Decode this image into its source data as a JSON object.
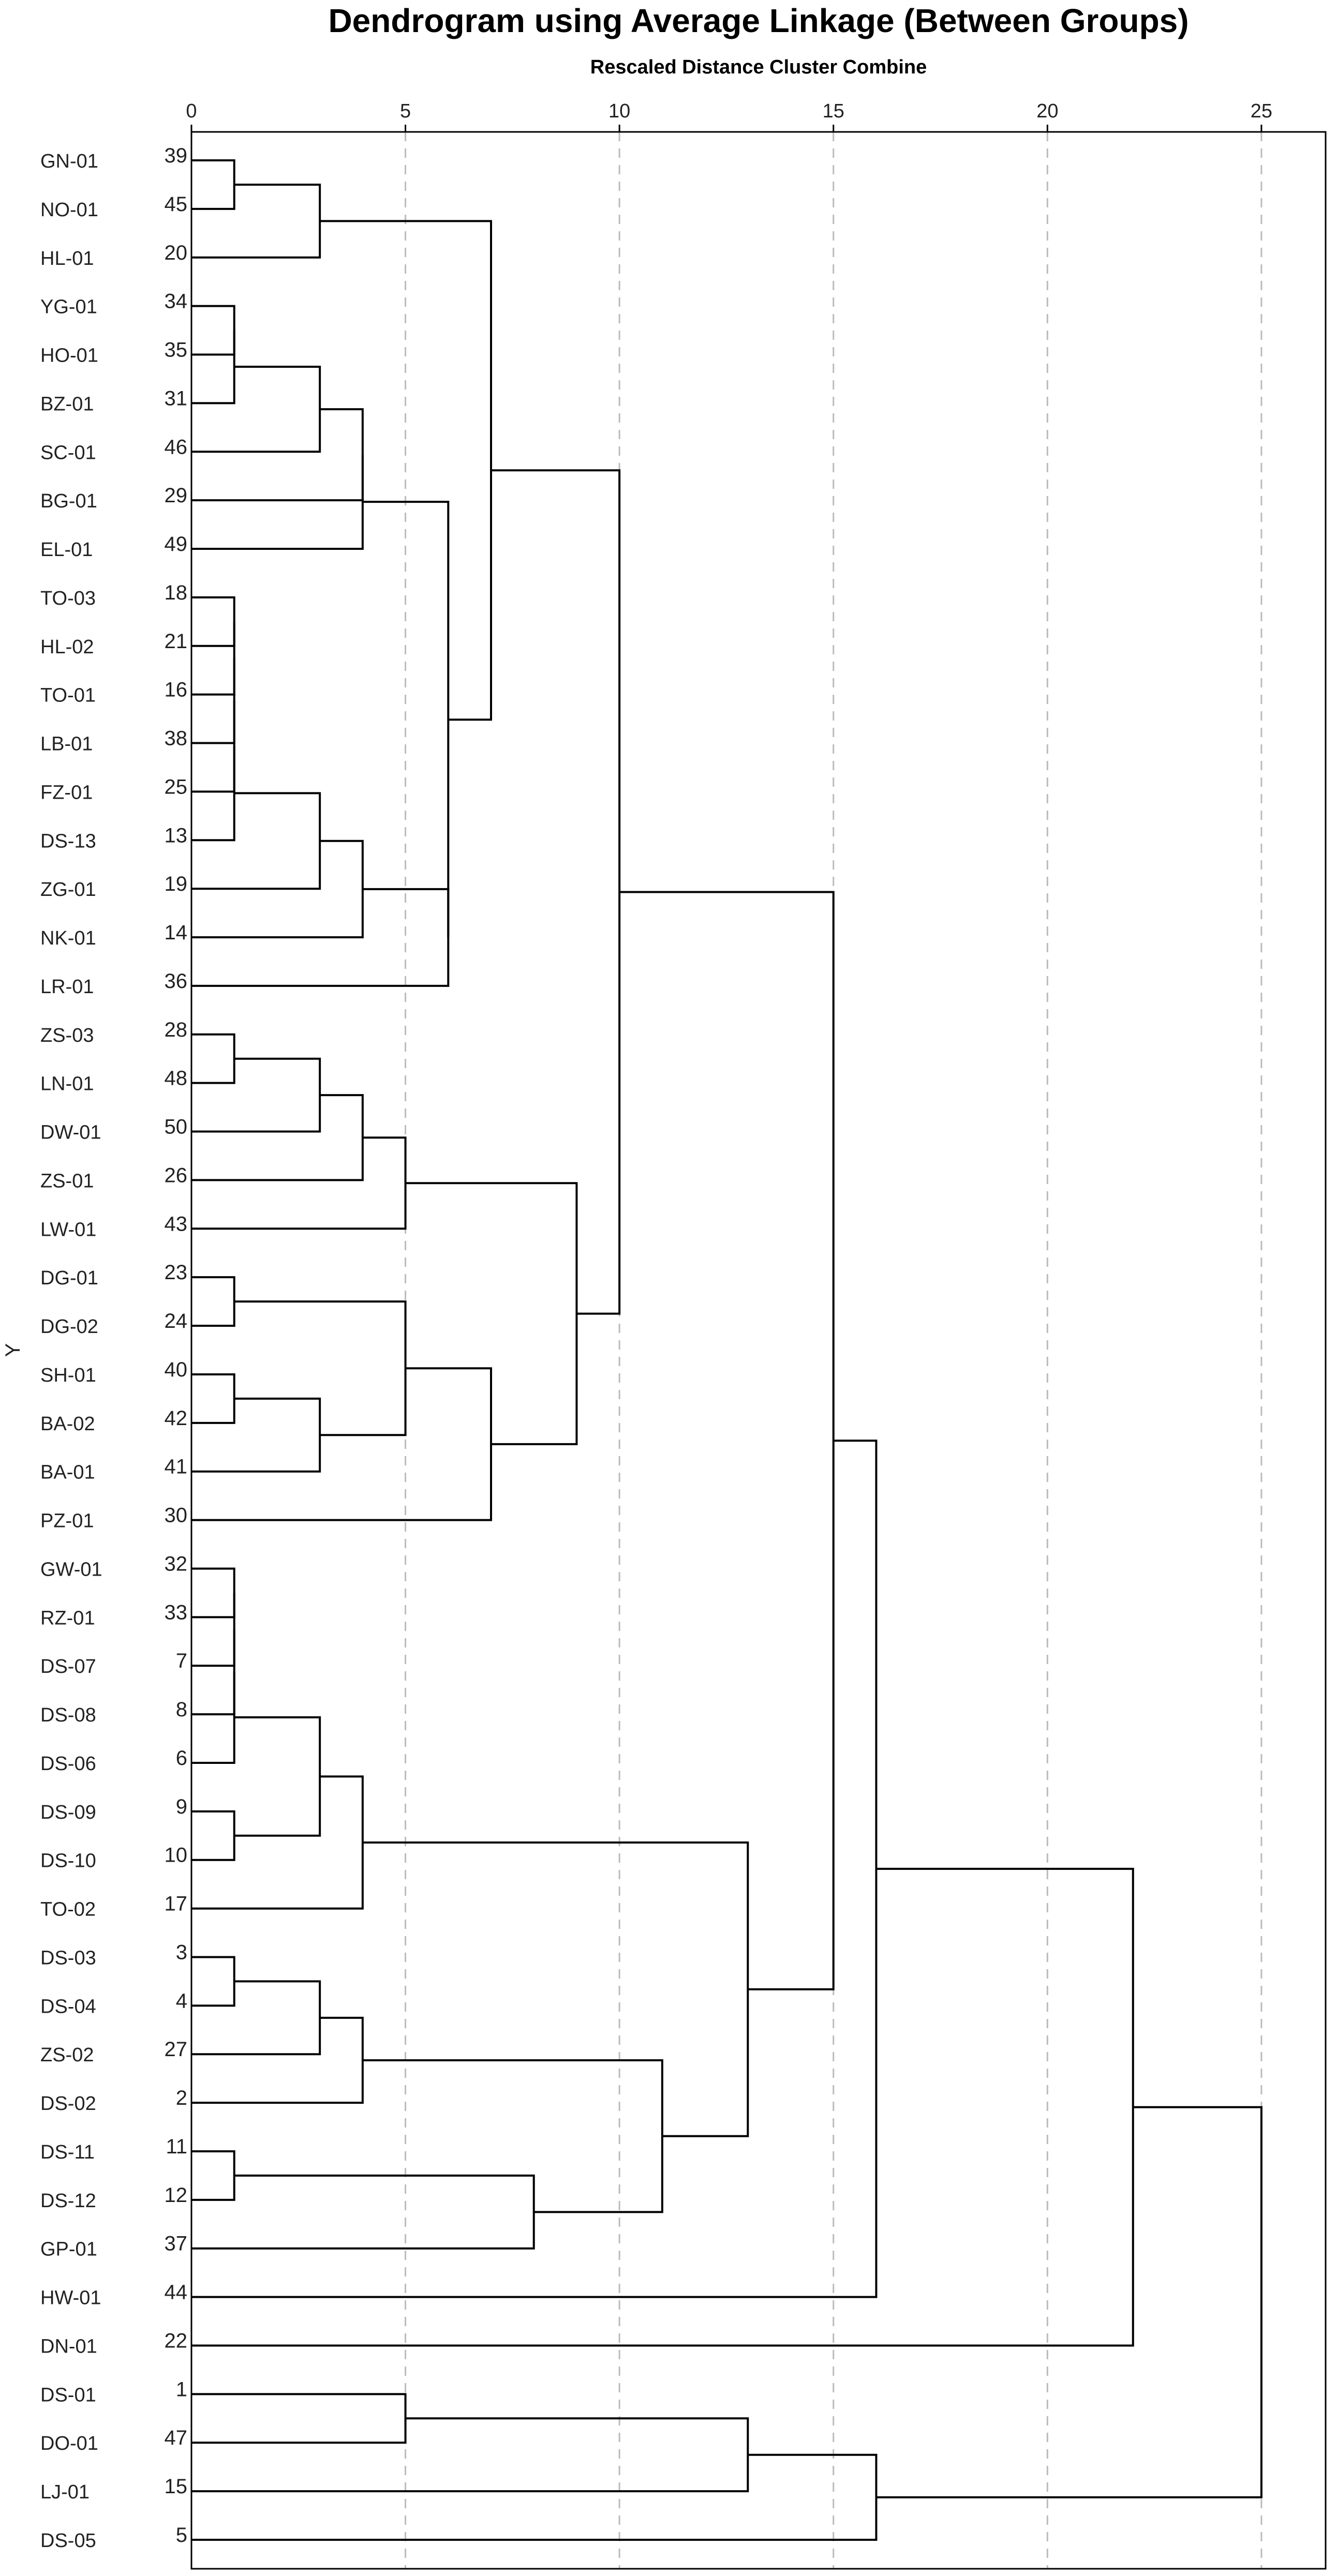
{
  "chart_data": {
    "type": "dendrogram",
    "title": "Dendrogram using Average Linkage (Between Groups)",
    "subtitle": "Rescaled Distance Cluster Combine",
    "ylabel": "Y",
    "xlim": [
      0,
      26.5
    ],
    "xticks": [
      "0",
      "5",
      "10",
      "15",
      "20",
      "25"
    ],
    "grid": true,
    "colors": {
      "line": "#000000",
      "grid": "#bbbbbb",
      "frame": "#000000"
    },
    "leaves": [
      {
        "label": "GN-01",
        "id": "39"
      },
      {
        "label": "NO-01",
        "id": "45"
      },
      {
        "label": "HL-01",
        "id": "20"
      },
      {
        "label": "YG-01",
        "id": "34"
      },
      {
        "label": "HO-01",
        "id": "35"
      },
      {
        "label": "BZ-01",
        "id": "31"
      },
      {
        "label": "SC-01",
        "id": "46"
      },
      {
        "label": "BG-01",
        "id": "29"
      },
      {
        "label": "EL-01",
        "id": "49"
      },
      {
        "label": "TO-03",
        "id": "18"
      },
      {
        "label": "HL-02",
        "id": "21"
      },
      {
        "label": "TO-01",
        "id": "16"
      },
      {
        "label": "LB-01",
        "id": "38"
      },
      {
        "label": "FZ-01",
        "id": "25"
      },
      {
        "label": "DS-13",
        "id": "13"
      },
      {
        "label": "ZG-01",
        "id": "19"
      },
      {
        "label": "NK-01",
        "id": "14"
      },
      {
        "label": "LR-01",
        "id": "36"
      },
      {
        "label": "ZS-03",
        "id": "28"
      },
      {
        "label": "LN-01",
        "id": "48"
      },
      {
        "label": "DW-01",
        "id": "50"
      },
      {
        "label": "ZS-01",
        "id": "26"
      },
      {
        "label": "LW-01",
        "id": "43"
      },
      {
        "label": "DG-01",
        "id": "23"
      },
      {
        "label": "DG-02",
        "id": "24"
      },
      {
        "label": "SH-01",
        "id": "40"
      },
      {
        "label": "BA-02",
        "id": "42"
      },
      {
        "label": "BA-01",
        "id": "41"
      },
      {
        "label": "PZ-01",
        "id": "30"
      },
      {
        "label": "GW-01",
        "id": "32"
      },
      {
        "label": "RZ-01",
        "id": "33"
      },
      {
        "label": "DS-07",
        "id": "7"
      },
      {
        "label": "DS-08",
        "id": "8"
      },
      {
        "label": "DS-06",
        "id": "6"
      },
      {
        "label": "DS-09",
        "id": "9"
      },
      {
        "label": "DS-10",
        "id": "10"
      },
      {
        "label": "TO-02",
        "id": "17"
      },
      {
        "label": "DS-03",
        "id": "3"
      },
      {
        "label": "DS-04",
        "id": "4"
      },
      {
        "label": "ZS-02",
        "id": "27"
      },
      {
        "label": "DS-02",
        "id": "2"
      },
      {
        "label": "DS-11",
        "id": "11"
      },
      {
        "label": "DS-12",
        "id": "12"
      },
      {
        "label": "GP-01",
        "id": "37"
      },
      {
        "label": "HW-01",
        "id": "44"
      },
      {
        "label": "DN-01",
        "id": "22"
      },
      {
        "label": "DS-01",
        "id": "1"
      },
      {
        "label": "DO-01",
        "id": "47"
      },
      {
        "label": "LJ-01",
        "id": "15"
      },
      {
        "label": "DS-05",
        "id": "5"
      }
    ],
    "merges": [
      {
        "a": [
          0
        ],
        "b": [
          1
        ],
        "d": 1
      },
      {
        "a": [
          0,
          1
        ],
        "b": [
          2
        ],
        "d": 3
      },
      {
        "a": [
          3
        ],
        "b": [
          4
        ],
        "d": 1
      },
      {
        "a": [
          3,
          4
        ],
        "b": [
          5
        ],
        "d": 1
      },
      {
        "a": [
          3,
          4,
          5
        ],
        "b": [
          6
        ],
        "d": 3
      },
      {
        "a": [
          3,
          4,
          5,
          6
        ],
        "b": [
          7
        ],
        "d": 4
      },
      {
        "a": [
          3,
          4,
          5,
          6,
          7
        ],
        "b": [
          8
        ],
        "d": 4
      },
      {
        "a": [
          9
        ],
        "b": [
          10
        ],
        "d": 1
      },
      {
        "a": [
          9,
          10
        ],
        "b": [
          11
        ],
        "d": 1
      },
      {
        "a": [
          9,
          10,
          11
        ],
        "b": [
          12
        ],
        "d": 1
      },
      {
        "a": [
          9,
          10,
          11,
          12
        ],
        "b": [
          13
        ],
        "d": 1
      },
      {
        "a": [
          9,
          10,
          11,
          12,
          13
        ],
        "b": [
          14
        ],
        "d": 1
      },
      {
        "a": [
          9,
          10,
          11,
          12,
          13,
          14
        ],
        "b": [
          15
        ],
        "d": 3
      },
      {
        "a": [
          9,
          10,
          11,
          12,
          13,
          14,
          15
        ],
        "b": [
          16
        ],
        "d": 4
      },
      {
        "a": [
          9,
          10,
          11,
          12,
          13,
          14,
          15,
          16
        ],
        "b": [
          17
        ],
        "d": 6
      },
      {
        "a": [
          3,
          4,
          5,
          6,
          7,
          8
        ],
        "b": [
          9,
          10,
          11,
          12,
          13,
          14,
          15,
          16,
          17
        ],
        "d": 6
      },
      {
        "a": [
          0,
          1,
          2
        ],
        "b": [
          3,
          4,
          5,
          6,
          7,
          8,
          9,
          10,
          11,
          12,
          13,
          14,
          15,
          16,
          17
        ],
        "d": 7
      },
      {
        "a": [
          18
        ],
        "b": [
          19
        ],
        "d": 1
      },
      {
        "a": [
          18,
          19
        ],
        "b": [
          20
        ],
        "d": 3
      },
      {
        "a": [
          18,
          19,
          20
        ],
        "b": [
          21
        ],
        "d": 4
      },
      {
        "a": [
          18,
          19,
          20,
          21
        ],
        "b": [
          22
        ],
        "d": 5
      },
      {
        "a": [
          23
        ],
        "b": [
          24
        ],
        "d": 1
      },
      {
        "a": [
          25
        ],
        "b": [
          26
        ],
        "d": 1
      },
      {
        "a": [
          25,
          26
        ],
        "b": [
          27
        ],
        "d": 3
      },
      {
        "a": [
          23,
          24
        ],
        "b": [
          25,
          26,
          27
        ],
        "d": 5
      },
      {
        "a": [
          23,
          24,
          25,
          26,
          27
        ],
        "b": [
          28
        ],
        "d": 7
      },
      {
        "a": [
          18,
          19,
          20,
          21,
          22
        ],
        "b": [
          23,
          24,
          25,
          26,
          27,
          28
        ],
        "d": 9
      },
      {
        "a": [
          0,
          1,
          2,
          3,
          4,
          5,
          6,
          7,
          8,
          9,
          10,
          11,
          12,
          13,
          14,
          15,
          16,
          17
        ],
        "b": [
          18,
          19,
          20,
          21,
          22,
          23,
          24,
          25,
          26,
          27,
          28
        ],
        "d": 10
      },
      {
        "a": [
          29
        ],
        "b": [
          30
        ],
        "d": 1
      },
      {
        "a": [
          29,
          30
        ],
        "b": [
          31
        ],
        "d": 1
      },
      {
        "a": [
          29,
          30,
          31
        ],
        "b": [
          32
        ],
        "d": 1
      },
      {
        "a": [
          29,
          30,
          31,
          32
        ],
        "b": [
          33
        ],
        "d": 1
      },
      {
        "a": [
          34
        ],
        "b": [
          35
        ],
        "d": 1
      },
      {
        "a": [
          29,
          30,
          31,
          32,
          33
        ],
        "b": [
          34,
          35
        ],
        "d": 3
      },
      {
        "a": [
          29,
          30,
          31,
          32,
          33,
          34,
          35
        ],
        "b": [
          36
        ],
        "d": 4
      },
      {
        "a": [
          37
        ],
        "b": [
          38
        ],
        "d": 1
      },
      {
        "a": [
          37,
          38
        ],
        "b": [
          39
        ],
        "d": 3
      },
      {
        "a": [
          37,
          38,
          39
        ],
        "b": [
          40
        ],
        "d": 4
      },
      {
        "a": [
          41
        ],
        "b": [
          42
        ],
        "d": 1
      },
      {
        "a": [
          41,
          42
        ],
        "b": [
          43
        ],
        "d": 8
      },
      {
        "a": [
          37,
          38,
          39,
          40
        ],
        "b": [
          41,
          42,
          43
        ],
        "d": 11
      },
      {
        "a": [
          29,
          30,
          31,
          32,
          33,
          34,
          35,
          36
        ],
        "b": [
          37,
          38,
          39,
          40,
          41,
          42,
          43
        ],
        "d": 13
      },
      {
        "a": [
          0,
          1,
          2,
          3,
          4,
          5,
          6,
          7,
          8,
          9,
          10,
          11,
          12,
          13,
          14,
          15,
          16,
          17,
          18,
          19,
          20,
          21,
          22,
          23,
          24,
          25,
          26,
          27,
          28
        ],
        "b": [
          29,
          30,
          31,
          32,
          33,
          34,
          35,
          36,
          37,
          38,
          39,
          40,
          41,
          42,
          43
        ],
        "d": 15
      },
      {
        "a": [
          0,
          1,
          2,
          3,
          4,
          5,
          6,
          7,
          8,
          9,
          10,
          11,
          12,
          13,
          14,
          15,
          16,
          17,
          18,
          19,
          20,
          21,
          22,
          23,
          24,
          25,
          26,
          27,
          28,
          29,
          30,
          31,
          32,
          33,
          34,
          35,
          36,
          37,
          38,
          39,
          40,
          41,
          42,
          43
        ],
        "b": [
          44
        ],
        "d": 16
      },
      {
        "a": [
          0,
          1,
          2,
          3,
          4,
          5,
          6,
          7,
          8,
          9,
          10,
          11,
          12,
          13,
          14,
          15,
          16,
          17,
          18,
          19,
          20,
          21,
          22,
          23,
          24,
          25,
          26,
          27,
          28,
          29,
          30,
          31,
          32,
          33,
          34,
          35,
          36,
          37,
          38,
          39,
          40,
          41,
          42,
          43,
          44
        ],
        "b": [
          45
        ],
        "d": 22
      },
      {
        "a": [
          46
        ],
        "b": [
          47
        ],
        "d": 5
      },
      {
        "a": [
          46,
          47
        ],
        "b": [
          48
        ],
        "d": 13
      },
      {
        "a": [
          46,
          47,
          48
        ],
        "b": [
          49
        ],
        "d": 16
      },
      {
        "a": [
          0,
          1,
          2,
          3,
          4,
          5,
          6,
          7,
          8,
          9,
          10,
          11,
          12,
          13,
          14,
          15,
          16,
          17,
          18,
          19,
          20,
          21,
          22,
          23,
          24,
          25,
          26,
          27,
          28,
          29,
          30,
          31,
          32,
          33,
          34,
          35,
          36,
          37,
          38,
          39,
          40,
          41,
          42,
          43,
          44,
          45
        ],
        "b": [
          46,
          47,
          48,
          49
        ],
        "d": 25
      }
    ]
  }
}
